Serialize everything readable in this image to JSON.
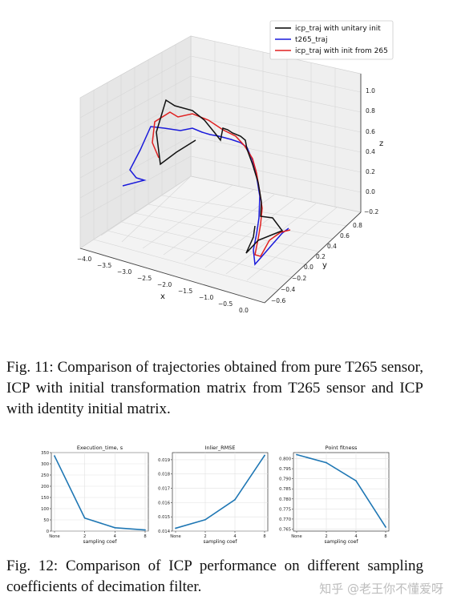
{
  "figure11": {
    "legend": [
      "icp_traj with unitary init",
      "t265_traj",
      "icp_traj with init from 265"
    ],
    "colors": [
      "#000000",
      "#1a1adb",
      "#e02020"
    ],
    "axes": {
      "x": {
        "label": "x",
        "ticks": [
          "−4.0",
          "−3.5",
          "−3.0",
          "−2.5",
          "−2.0",
          "−1.5",
          "−1.0",
          "−0.5",
          "0.0"
        ]
      },
      "y": {
        "label": "y",
        "ticks": [
          "−0.6",
          "−0.4",
          "−0.2",
          "0.0",
          "0.2",
          "0.4",
          "0.6",
          "0.8"
        ]
      },
      "z": {
        "label": "z",
        "ticks": [
          "−0.2",
          "0.0",
          "0.2",
          "0.4",
          "0.6",
          "0.8",
          "1.0"
        ]
      }
    },
    "caption": "Fig. 11: Comparison of trajectories obtained from pure T265 sensor, ICP with initial transformation matrix from T265 sensor and ICP with identity initial matrix."
  },
  "chart_data": [
    {
      "type": "line",
      "title": "Execution_time, s",
      "xlabel": "sampling coef",
      "categories": [
        "None",
        "2",
        "4",
        "8"
      ],
      "values": [
        335,
        58,
        15,
        5
      ],
      "yticks": [
        "0",
        "50",
        "100",
        "150",
        "200",
        "250",
        "300",
        "350"
      ],
      "ylim": [
        0,
        350
      ],
      "color": "#1f77b4"
    },
    {
      "type": "line",
      "title": "Inlier_RMSE",
      "xlabel": "sampling coef",
      "categories": [
        "None",
        "2",
        "4",
        "8"
      ],
      "values": [
        0.0142,
        0.0148,
        0.0162,
        0.0193
      ],
      "yticks": [
        "0.014",
        "0.015",
        "0.016",
        "0.017",
        "0.018",
        "0.019"
      ],
      "ylim": [
        0.014,
        0.0195
      ],
      "color": "#1f77b4"
    },
    {
      "type": "line",
      "title": "Point fitness",
      "xlabel": "sampling coef",
      "categories": [
        "None",
        "2",
        "4",
        "8"
      ],
      "values": [
        0.802,
        0.798,
        0.789,
        0.766
      ],
      "yticks": [
        "0.765",
        "0.770",
        "0.775",
        "0.780",
        "0.785",
        "0.790",
        "0.795",
        "0.800"
      ],
      "ylim": [
        0.764,
        0.803
      ],
      "color": "#1f77b4"
    }
  ],
  "figure12": {
    "caption": "Fig. 12: Comparison of ICP performance on different sampling coefficients of decimation filter."
  },
  "watermark": "知乎 @老王你不懂爱呀"
}
